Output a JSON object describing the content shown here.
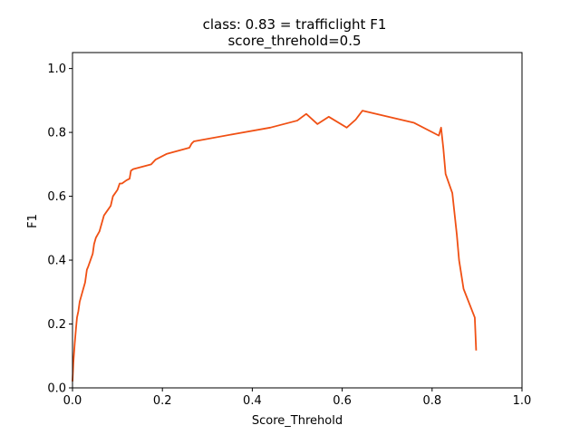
{
  "chart_data": {
    "type": "line",
    "title": "class: 0.83 = trafficlight F1",
    "subtitle": "score_threhold=0.5",
    "xlabel": "Score_Threhold",
    "ylabel": "F1",
    "xlim": [
      0.0,
      1.0
    ],
    "ylim": [
      0.0,
      1.05
    ],
    "xticks": [
      "0.0",
      "0.2",
      "0.4",
      "0.6",
      "0.8",
      "1.0"
    ],
    "yticks": [
      "0.0",
      "0.2",
      "0.4",
      "0.6",
      "0.8",
      "1.0"
    ],
    "grid": false,
    "series": [
      {
        "color": "#f05014",
        "x": [
          0.0,
          0.002,
          0.005,
          0.008,
          0.01,
          0.013,
          0.016,
          0.02,
          0.024,
          0.028,
          0.032,
          0.035,
          0.04,
          0.045,
          0.048,
          0.052,
          0.056,
          0.06,
          0.066,
          0.07,
          0.075,
          0.08,
          0.085,
          0.09,
          0.095,
          0.1,
          0.105,
          0.11,
          0.12,
          0.127,
          0.13,
          0.135,
          0.175,
          0.185,
          0.21,
          0.26,
          0.265,
          0.27,
          0.36,
          0.44,
          0.5,
          0.52,
          0.545,
          0.57,
          0.61,
          0.63,
          0.645,
          0.76,
          0.815,
          0.82,
          0.825,
          0.83,
          0.845,
          0.85,
          0.855,
          0.86,
          0.87,
          0.895,
          0.898
        ],
        "y": [
          0.02,
          0.08,
          0.14,
          0.19,
          0.22,
          0.24,
          0.27,
          0.29,
          0.31,
          0.33,
          0.37,
          0.38,
          0.4,
          0.42,
          0.45,
          0.47,
          0.48,
          0.49,
          0.52,
          0.54,
          0.55,
          0.56,
          0.57,
          0.6,
          0.61,
          0.62,
          0.64,
          0.64,
          0.65,
          0.655,
          0.68,
          0.685,
          0.7,
          0.715,
          0.733,
          0.752,
          0.765,
          0.772,
          0.795,
          0.815,
          0.837,
          0.858,
          0.826,
          0.849,
          0.815,
          0.84,
          0.868,
          0.83,
          0.79,
          0.815,
          0.75,
          0.67,
          0.61,
          0.545,
          0.48,
          0.4,
          0.31,
          0.22,
          0.117
        ]
      }
    ]
  }
}
